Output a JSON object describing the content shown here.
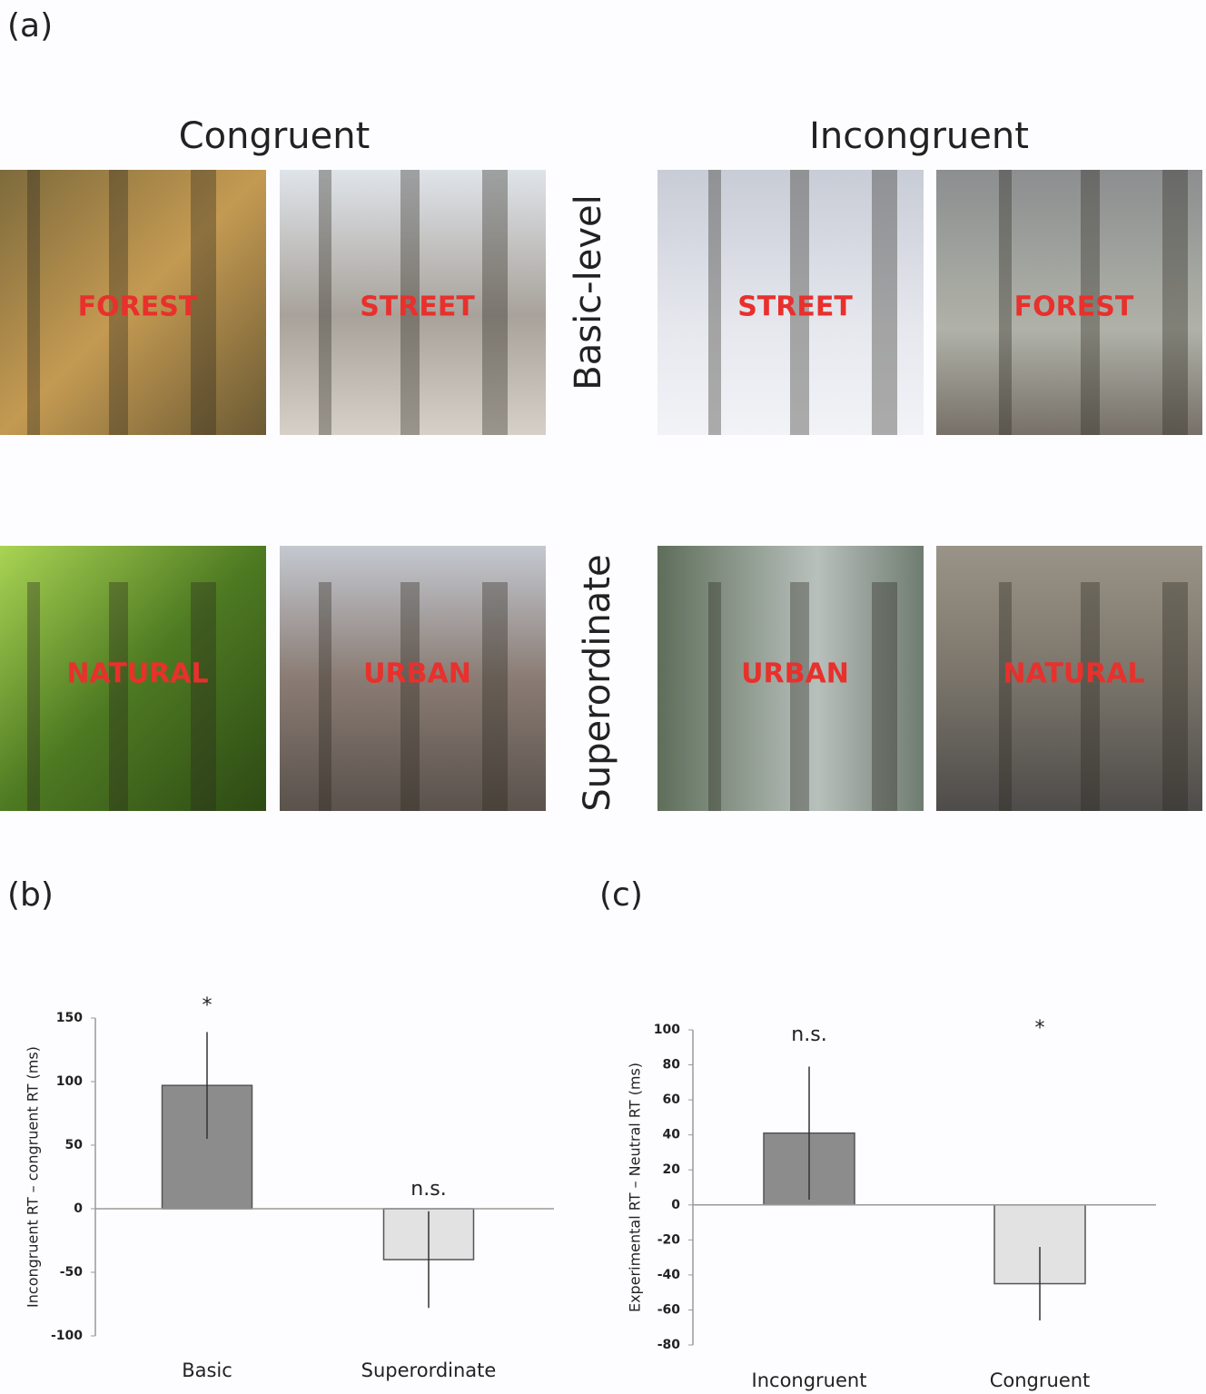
{
  "panel_a": {
    "label": "(a)",
    "columns": [
      "Congruent",
      "Incongruent"
    ],
    "rows": [
      "Basic-level",
      "Superordinate"
    ],
    "images": [
      [
        "FOREST",
        "STREET",
        "STREET",
        "FOREST"
      ],
      [
        "NATURAL",
        "URBAN",
        "URBAN",
        "NATURAL"
      ]
    ]
  },
  "chart_data": [
    {
      "type": "bar",
      "panel_label": "(b)",
      "y_label": "Incongruent RT – congruent RT (ms)",
      "categories": [
        "Basic",
        "Superordinate"
      ],
      "values": [
        97,
        -40
      ],
      "errors": [
        42,
        38
      ],
      "annotations": [
        "*",
        "n.s."
      ],
      "colors": [
        "#8c8c8c",
        "#e2e2e2"
      ],
      "ylim": [
        -100,
        150
      ],
      "yticks": [
        -100,
        -50,
        0,
        50,
        100,
        150
      ]
    },
    {
      "type": "bar",
      "panel_label": "(c)",
      "y_label": "Experimental RT – Neutral RT (ms)",
      "categories": [
        "Incongruent",
        "Congruent"
      ],
      "values": [
        41,
        -45
      ],
      "errors": [
        38,
        21
      ],
      "annotations": [
        "n.s.",
        "*"
      ],
      "colors": [
        "#8c8c8c",
        "#e2e2e2"
      ],
      "ylim": [
        -80,
        100
      ],
      "yticks": [
        -80,
        -60,
        -40,
        -20,
        0,
        20,
        40,
        60,
        80,
        100
      ]
    }
  ]
}
